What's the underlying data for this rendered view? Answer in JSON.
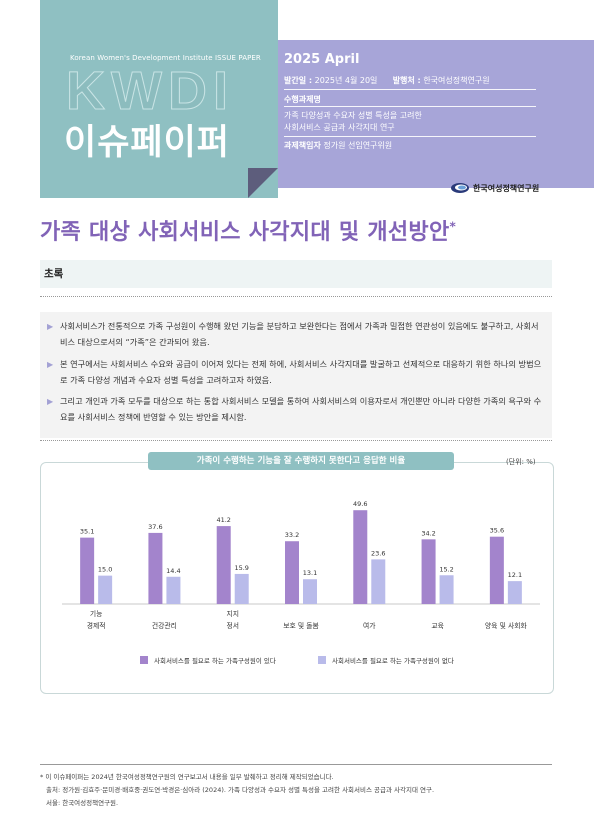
{
  "header": {
    "caption": "Korean Women's Development Institute ISSUE PAPER",
    "logo": "KWDI",
    "series_title": "이슈페이퍼",
    "date": "2025 April",
    "pub_date_label": "발간일 :",
    "pub_date_value": "2025년 4월 20일",
    "publisher_label": "발행처 :",
    "publisher_value": "한국여성정책연구원",
    "project_label": "수행과제명",
    "project_line1": "가족 다양성과 수요자 성별 특성을 고려한",
    "project_line2": "사회서비스 공급과 사각지대 연구",
    "lead_label": "과제책임자",
    "lead_value": "정가원 선임연구위원",
    "institute_name": "한국여성정책연구원"
  },
  "title": {
    "text": "가족 대상 사회서비스 사각지대 및 개선방안",
    "mark": "*"
  },
  "abstract": {
    "label": "초록",
    "items": [
      "사회서비스가 전통적으로 가족 구성원이 수행해 왔던 기능을 분담하고 보완한다는 점에서 가족과 밀접한 연관성이 있음에도 불구하고, 사회서비스 대상으로서의 “가족”은 간과되어 왔음.",
      "본 연구에서는 사회서비스 수요와 공급이 이어져 있다는 전제 하에, 사회서비스 사각지대를 발굴하고 선제적으로 대응하기 위한 하나의 방법으로 가족 다양성 개념과 수요자 성별 특성을 고려하고자 하였음.",
      "그리고 개인과 가족 모두를 대상으로 하는 통합 사회서비스 모델을 통하여 사회서비스의 이용자로서 개인뿐만 아니라 다양한 가족의 욕구와 수요를 사회서비스 정책에 반영할 수 있는 방안을 제시함."
    ]
  },
  "chart_header": {
    "title": "가족이 수행하는 기능을 잘 수행하지 못한다고 응답한 비율",
    "unit": "(단위: %)"
  },
  "chart_data": {
    "type": "bar",
    "title": "가족이 수행하는 기능을 잘 수행하지 못한다고 응답한 비율",
    "categories": [
      "기능\n경제적",
      "건강관리",
      "지지\n정서",
      "보호 및 돌봄",
      "여가",
      "교육",
      "양육 및 사회화"
    ],
    "category_lines": [
      [
        "기능",
        "경제적"
      ],
      [
        "건강관리"
      ],
      [
        "지지",
        "정서"
      ],
      [
        "보호 및 돌봄"
      ],
      [
        "여가"
      ],
      [
        "교육"
      ],
      [
        "양육 및 사회화"
      ]
    ],
    "series": [
      {
        "name": "사회서비스를 필요로 하는 가족구성원이 있다",
        "color": "#a384cc",
        "values": [
          35.1,
          37.6,
          41.2,
          33.2,
          49.6,
          34.2,
          35.6
        ]
      },
      {
        "name": "사회서비스를 필요로 하는 가족구성원이 없다",
        "color": "#b9bbea",
        "values": [
          15.0,
          14.4,
          15.9,
          13.1,
          23.6,
          15.2,
          12.1
        ]
      }
    ],
    "value_labels": [
      [
        "35.1",
        "37.6",
        "41.2",
        "33.2",
        "49.6",
        "34.2",
        "35.6"
      ],
      [
        "15.0",
        "14.4",
        "15.9",
        "13.1",
        "23.6",
        "15.2",
        "12.1"
      ]
    ],
    "ylim": [
      0,
      55
    ],
    "unit": "(단위: %)",
    "legend_position": "bottom",
    "grid": false
  },
  "footnote": {
    "line1": "* 이 이슈페이퍼는 2024년 한국여성정책연구원의 연구보고서 내용을 일부 발췌하고 정리해 제작되었습니다.",
    "line2": "출처: 정가원·김효주·문미경·배호중·권도연·박경은·심아라 (2024). 가족 다양성과 수요자 성별 특성을 고려한 사회서비스 공급과 사각지대 연구.",
    "line3": "서울: 한국여성정책연구원."
  },
  "colors": {
    "teal": "#8fc0c2",
    "lavender": "#a7a5d8",
    "title_purple": "#8163b7"
  }
}
